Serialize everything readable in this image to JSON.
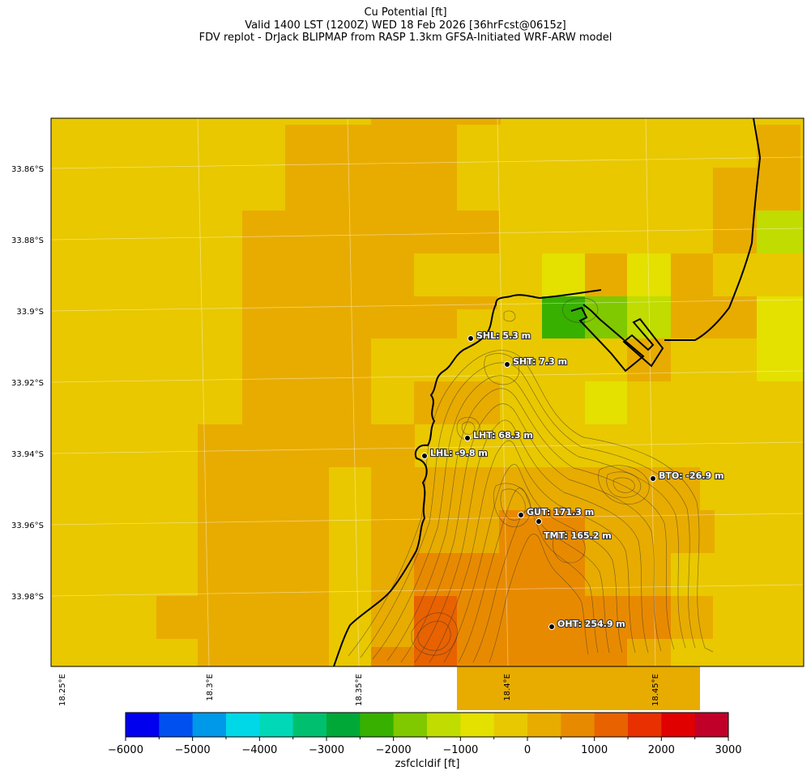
{
  "title": {
    "line1": "Cu Potential [ft]",
    "line2": "Valid 1400 LST (1200Z) WED 18 Feb 2026 [36hrFcst@0615z]",
    "line3": "FDV replot - DrJack BLIPMAP from RASP 1.3km GFSA-Initiated WRF-ARW model"
  },
  "axes": {
    "lat_labels": [
      "33.86°S",
      "33.88°S",
      "33.9°S",
      "33.92°S",
      "33.94°S",
      "33.96°S",
      "33.98°S"
    ],
    "lon_labels": [
      "18.25°E",
      "18.3°E",
      "18.35°E",
      "18.4°E",
      "18.45°E"
    ]
  },
  "colorbar": {
    "label": "zsfclcldif [ft]",
    "ticks": [
      "−6000",
      "−5000",
      "−4000",
      "−3000",
      "−2000",
      "−1000",
      "0",
      "1000",
      "2000",
      "3000"
    ],
    "colors": [
      "#0000ee",
      "#0050f0",
      "#0098e8",
      "#00d8e8",
      "#00d8b8",
      "#00c070",
      "#00a838",
      "#38b000",
      "#80c800",
      "#c0dc00",
      "#e4e000",
      "#e8c800",
      "#e8ac00",
      "#e88a00",
      "#e86200",
      "#e83000",
      "#e00000",
      "#c00028"
    ]
  },
  "stations": [
    {
      "label": "SHL: 5.3 m"
    },
    {
      "label": "SHT: 7.3 m"
    },
    {
      "label": "LHT: 68.3 m"
    },
    {
      "label": "LHL: -9.8 m"
    },
    {
      "label": "BTO: -26.9 m"
    },
    {
      "label": "GUT: 171.3 m"
    },
    {
      "label": "TMT: 165.2 m"
    },
    {
      "label": "OHT: 254.9 m"
    }
  ],
  "map_palette": {
    "yellow": "#e9c800",
    "gold": "#e8ac00",
    "orange": "#e88a00",
    "red_orange": "#e86200",
    "lemon": "#e4e000",
    "lime": "#c0dc00",
    "light_green": "#80c800",
    "green": "#38b000"
  }
}
